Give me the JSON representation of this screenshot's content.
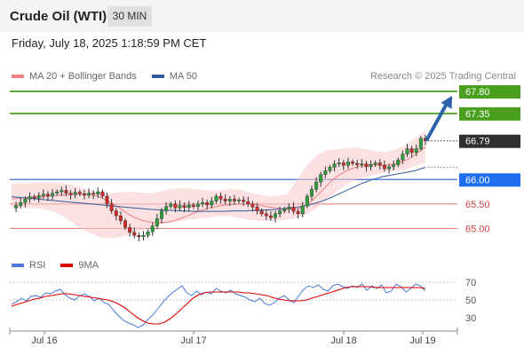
{
  "header": {
    "title": "Crude Oil (WTI)",
    "timeframe": "30 MIN"
  },
  "datetime": "Friday, July 18, 2025 1:18:59 PM CET",
  "legend": {
    "items": [
      {
        "label": "MA 20 + Bollinger Bands",
        "color": "#f08080"
      },
      {
        "label": "MA 50",
        "color": "#2f5a9e"
      }
    ],
    "credit": "Research © 2025 Trading Central"
  },
  "rsi_legend": {
    "items": [
      {
        "label": "RSI",
        "color": "#4a78d8"
      },
      {
        "label": "9MA",
        "color": "#e00000"
      }
    ]
  },
  "chart_data": [
    {
      "type": "candlestick",
      "ylim": [
        64.5,
        68.0
      ],
      "x_ticks": [
        "Jul 16",
        "Jul 17",
        "Jul 18",
        "Jul 19"
      ],
      "current_price": {
        "label": "66.79",
        "value": 66.79
      },
      "levels": [
        {
          "label": "67.80",
          "value": 67.8,
          "kind": "resistance"
        },
        {
          "label": "67.35",
          "value": 67.35,
          "kind": "resistance"
        },
        {
          "label": "66.00",
          "value": 66.0,
          "kind": "pivot"
        },
        {
          "label": "65.50",
          "value": 65.5,
          "kind": "support"
        },
        {
          "label": "65.00",
          "value": 65.0,
          "kind": "support"
        }
      ],
      "close_path": [
        65.42,
        65.47,
        65.53,
        65.6,
        65.65,
        65.62,
        65.67,
        65.7,
        65.66,
        65.72,
        65.75,
        65.78,
        65.72,
        65.69,
        65.74,
        65.71,
        65.68,
        65.72,
        65.7,
        65.75,
        65.66,
        65.5,
        65.36,
        65.26,
        65.16,
        65.02,
        64.92,
        64.86,
        64.83,
        64.86,
        64.93,
        65.05,
        65.2,
        65.36,
        65.45,
        65.5,
        65.42,
        65.47,
        65.43,
        65.48,
        65.45,
        65.5,
        65.53,
        65.48,
        65.56,
        65.66,
        65.6,
        65.56,
        65.6,
        65.56,
        65.58,
        65.55,
        65.5,
        65.44,
        65.36,
        65.3,
        65.26,
        65.22,
        65.3,
        65.36,
        65.4,
        65.44,
        65.35,
        65.3,
        65.46,
        65.66,
        65.8,
        65.95,
        66.1,
        66.18,
        66.25,
        66.32,
        66.34,
        66.29,
        66.36,
        66.33,
        66.3,
        66.32,
        66.26,
        66.31,
        66.34,
        66.29,
        66.22,
        66.26,
        66.3,
        66.4,
        66.52,
        66.63,
        66.55,
        66.63,
        66.84,
        66.79
      ],
      "ma20": [
        65.6,
        65.62,
        65.63,
        65.64,
        65.65,
        65.66,
        65.67,
        65.68,
        65.69,
        65.7,
        65.7,
        65.69,
        65.66,
        65.6,
        65.52,
        65.43,
        65.33,
        65.24,
        65.18,
        65.14,
        65.12,
        65.12,
        65.13,
        65.17,
        65.22,
        65.28,
        65.34,
        65.39,
        65.43,
        65.46,
        65.48,
        65.49,
        65.5,
        65.5,
        65.49,
        65.47,
        65.44,
        65.42,
        65.4,
        65.39,
        65.4,
        65.45,
        65.55,
        65.7,
        65.85,
        66.0,
        66.1,
        66.18,
        66.24,
        66.28,
        66.3,
        66.3,
        66.29,
        66.3,
        66.33,
        66.38,
        66.45,
        66.56,
        66.66
      ],
      "ma50": [
        65.65,
        65.63,
        65.61,
        65.59,
        65.57,
        65.55,
        65.53,
        65.51,
        65.49,
        65.47,
        65.45,
        65.43,
        65.41,
        65.39,
        65.38,
        65.37,
        65.36,
        65.35,
        65.35,
        65.35,
        65.35,
        65.36,
        65.36,
        65.37,
        65.38,
        65.39,
        65.41,
        65.44,
        65.48,
        65.54,
        65.62,
        65.72,
        65.82,
        65.92,
        66.0,
        66.06,
        66.1,
        66.14,
        66.18,
        66.25
      ],
      "bb_upper": [
        65.9,
        65.92,
        65.93,
        65.94,
        65.94,
        65.93,
        65.9,
        65.85,
        65.78,
        65.72,
        65.72,
        65.74,
        65.75,
        65.74,
        65.72,
        65.75,
        65.8,
        65.82,
        65.82,
        65.8,
        65.78,
        65.78,
        65.8,
        65.8,
        65.75,
        65.7,
        65.66,
        65.66,
        65.72,
        66.0,
        66.3,
        66.5,
        66.6,
        66.62,
        66.64,
        66.66,
        66.62,
        66.58,
        66.56,
        66.62,
        66.7,
        66.85,
        67.0
      ],
      "bb_lower": [
        65.4,
        65.42,
        65.42,
        65.4,
        65.36,
        65.28,
        65.15,
        65.0,
        64.9,
        64.82,
        64.8,
        64.82,
        64.88,
        64.95,
        65.02,
        65.08,
        65.12,
        65.15,
        65.18,
        65.2,
        65.22,
        65.25,
        65.25,
        65.22,
        65.18,
        65.16,
        65.15,
        65.16,
        65.18,
        65.22,
        65.3,
        65.42,
        65.58,
        65.75,
        65.9,
        66.0,
        66.05,
        66.1,
        66.15,
        66.18,
        66.2,
        66.28,
        66.35
      ]
    },
    {
      "type": "line",
      "name": "RSI",
      "ylim": [
        20,
        80
      ],
      "y_ticks": [
        "70",
        "50",
        "30"
      ],
      "rsi": [
        45,
        48,
        52,
        49,
        54,
        55,
        53,
        58,
        57,
        60,
        62,
        56,
        52,
        50,
        55,
        57,
        54,
        49,
        52,
        47,
        45,
        38,
        32,
        27,
        24,
        22,
        19,
        22,
        28,
        33,
        40,
        47,
        53,
        58,
        62,
        66,
        58,
        55,
        60,
        56,
        59,
        57,
        63,
        60,
        58,
        61,
        57,
        55,
        53,
        50,
        48,
        52,
        46,
        44,
        47,
        52,
        55,
        50,
        47,
        55,
        62,
        66,
        64,
        67,
        62,
        60,
        66,
        68,
        65,
        63,
        66,
        64,
        68,
        61,
        66,
        63,
        67,
        58,
        60,
        68,
        65,
        59,
        63,
        68,
        66,
        60
      ],
      "ma9": [
        43,
        45,
        47,
        49,
        51,
        52,
        54,
        55,
        56,
        57,
        57,
        56,
        55,
        54,
        53,
        52,
        51,
        50,
        48,
        45,
        41,
        36,
        31,
        27,
        24,
        23,
        23,
        25,
        29,
        34,
        40,
        46,
        52,
        56,
        58,
        59,
        59,
        59,
        59,
        59,
        59,
        58,
        58,
        57,
        56,
        55,
        53,
        51,
        50,
        49,
        49,
        49,
        50,
        52,
        54,
        56,
        58,
        60,
        62,
        64,
        65,
        65,
        65,
        65,
        64,
        64,
        64,
        64,
        64,
        64,
        64,
        64,
        64,
        63
      ]
    }
  ]
}
